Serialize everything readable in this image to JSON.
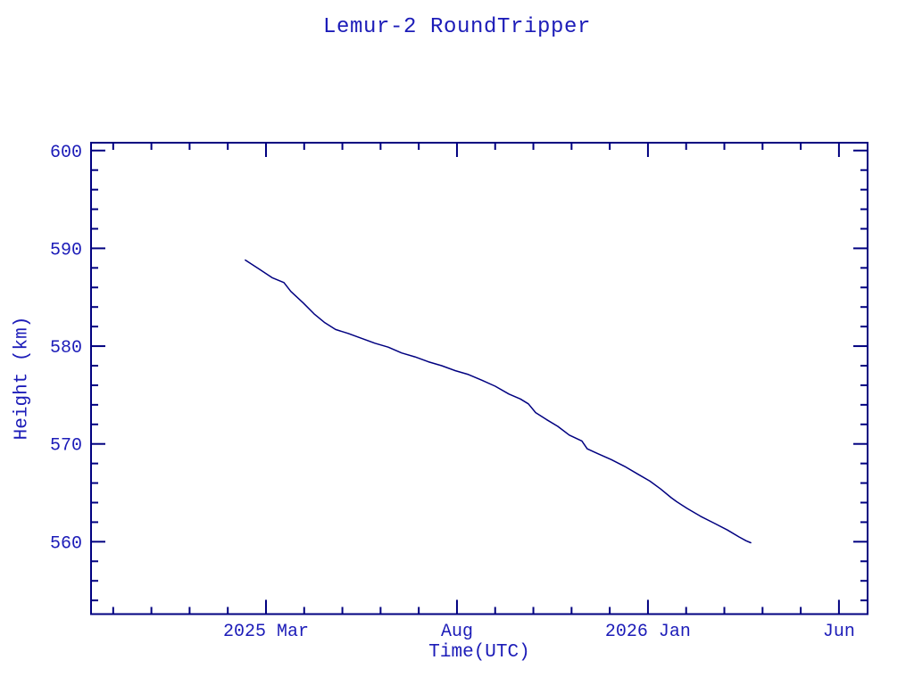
{
  "chart_data": {
    "type": "line",
    "title": "Lemur-2 RoundTripper",
    "xlabel": "Time(UTC)",
    "ylabel": "Height (km)",
    "grid": false,
    "legend": "none",
    "colors": {
      "background": "#ffffff",
      "text": "#1c1cb8",
      "axis": "#000080",
      "line": "#000080"
    },
    "x_axis": {
      "unit": "months since 2025-01-01",
      "range": [
        -2.58,
        17.75
      ],
      "major_ticks": [
        {
          "value": 2,
          "label": "2025 Mar"
        },
        {
          "value": 7,
          "label": "Aug"
        },
        {
          "value": 12,
          "label": "2026 Jan"
        },
        {
          "value": 17,
          "label": "Jun"
        }
      ],
      "minor_ticks": [
        -2,
        -1,
        0,
        1,
        3,
        4,
        5,
        6,
        8,
        9,
        10,
        11,
        13,
        14,
        15,
        16
      ]
    },
    "y_axis": {
      "unit": "km",
      "range": [
        552.6,
        600.8
      ],
      "major_ticks": [
        {
          "value": 560,
          "label": "560"
        },
        {
          "value": 570,
          "label": "570"
        },
        {
          "value": 580,
          "label": "580"
        },
        {
          "value": 590,
          "label": "590"
        },
        {
          "value": 600,
          "label": "600"
        }
      ],
      "minor_ticks": [
        554,
        556,
        558,
        562,
        564,
        566,
        568,
        572,
        574,
        576,
        578,
        582,
        584,
        586,
        588,
        592,
        594,
        596,
        598
      ]
    },
    "series": [
      {
        "name": "height",
        "points": [
          [
            1.46,
            588.8
          ],
          [
            1.81,
            587.9
          ],
          [
            2.16,
            587.0
          ],
          [
            2.47,
            586.5
          ],
          [
            2.65,
            585.6
          ],
          [
            2.98,
            584.4
          ],
          [
            3.26,
            583.3
          ],
          [
            3.54,
            582.4
          ],
          [
            3.82,
            581.7
          ],
          [
            4.15,
            581.3
          ],
          [
            4.5,
            580.8
          ],
          [
            4.85,
            580.3
          ],
          [
            5.2,
            579.9
          ],
          [
            5.55,
            579.3
          ],
          [
            5.9,
            578.9
          ],
          [
            6.25,
            578.4
          ],
          [
            6.6,
            578.0
          ],
          [
            6.95,
            577.5
          ],
          [
            7.3,
            577.1
          ],
          [
            7.66,
            576.5
          ],
          [
            8.0,
            575.9
          ],
          [
            8.36,
            575.1
          ],
          [
            8.66,
            574.6
          ],
          [
            8.87,
            574.1
          ],
          [
            9.06,
            573.2
          ],
          [
            9.34,
            572.5
          ],
          [
            9.64,
            571.8
          ],
          [
            9.94,
            570.9
          ],
          [
            10.27,
            570.3
          ],
          [
            10.41,
            569.5
          ],
          [
            10.69,
            569.0
          ],
          [
            11.04,
            568.4
          ],
          [
            11.39,
            567.7
          ],
          [
            11.74,
            566.9
          ],
          [
            12.05,
            566.2
          ],
          [
            12.33,
            565.4
          ],
          [
            12.61,
            564.5
          ],
          [
            12.75,
            564.1
          ],
          [
            13.03,
            563.4
          ],
          [
            13.38,
            562.6
          ],
          [
            13.73,
            561.9
          ],
          [
            14.08,
            561.2
          ],
          [
            14.38,
            560.5
          ],
          [
            14.57,
            560.1
          ],
          [
            14.69,
            559.9
          ]
        ]
      }
    ]
  }
}
